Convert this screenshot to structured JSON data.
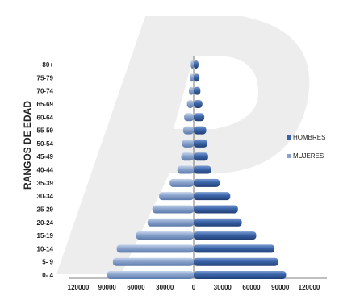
{
  "chart_data": {
    "type": "bar",
    "orientation": "horizontal",
    "layout": "population-pyramid",
    "ylabel": "RANGOS DE EDAD",
    "categories": [
      "0- 4",
      "5- 9",
      "10-14",
      "15-19",
      "20-24",
      "25-29",
      "30-34",
      "35-39",
      "40-44",
      "45-49",
      "50-54",
      "55-59",
      "60-64",
      "65-69",
      "70-74",
      "75-79",
      "80+"
    ],
    "series": [
      {
        "name": "HOMBRES",
        "color": "#3a64a8",
        "side": "right",
        "values": [
          96000,
          88000,
          84000,
          65000,
          50000,
          46000,
          38000,
          27000,
          18000,
          15000,
          14000,
          13000,
          11000,
          9000,
          7000,
          6000,
          5000
        ]
      },
      {
        "name": "MUJERES",
        "color": "#8aa3cc",
        "side": "left",
        "values": [
          90000,
          84000,
          80000,
          60000,
          48000,
          43000,
          36000,
          25000,
          17000,
          13000,
          12000,
          11000,
          10000,
          7000,
          5000,
          4000,
          3000
        ]
      }
    ],
    "xlim": [
      -120000,
      120000
    ],
    "xticks": [
      -120000,
      -90000,
      -60000,
      -30000,
      0,
      30000,
      60000,
      90000,
      120000
    ],
    "xtick_labels": [
      "120000",
      "90000",
      "60000",
      "30000",
      "0",
      "30000",
      "60000",
      "90000",
      "120000"
    ],
    "legend_position": "right",
    "legend": [
      "HOMBRES",
      "MUJERES"
    ],
    "grid": false
  }
}
